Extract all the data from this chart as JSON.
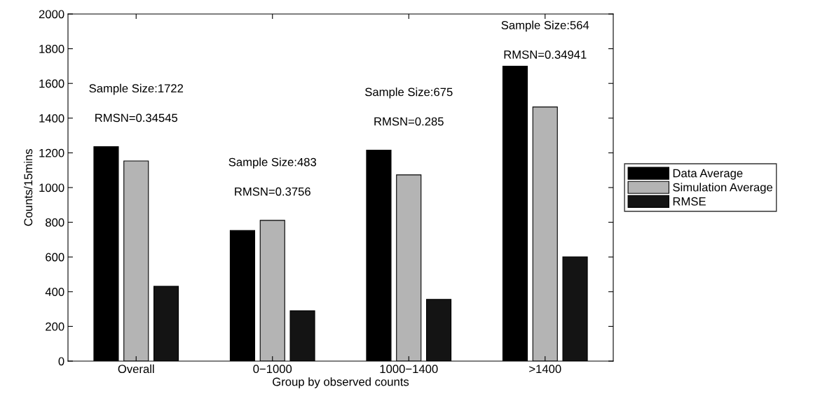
{
  "chart_data": {
    "type": "bar",
    "xlabel": "Group by observed counts",
    "ylabel": "Counts/15mins",
    "categories": [
      "Overall",
      "0−1000",
      "1000−1400",
      ">1400"
    ],
    "series": [
      {
        "name": "Data Average",
        "color": "#000000",
        "values": [
          1236,
          753,
          1215,
          1699
        ]
      },
      {
        "name": "Simulation Average",
        "color": "#b4b4b4",
        "values": [
          1153,
          811,
          1073,
          1464
        ]
      },
      {
        "name": "RMSE",
        "color": "#141414",
        "values": [
          431,
          290,
          356,
          601
        ]
      }
    ],
    "ylim": [
      0,
      2000
    ],
    "yticks": [
      0,
      200,
      400,
      600,
      800,
      1000,
      1200,
      1400,
      1600,
      1800,
      2000
    ],
    "annotations": [
      "Sample Size:1722",
      "RMSN=0.34545",
      "Sample Size:483",
      "RMSN=0.3756",
      "Sample Size:675",
      "RMSN=0.285",
      "Sample Size:564",
      "RMSN=0.34941"
    ],
    "legend": "right",
    "grid": false
  }
}
